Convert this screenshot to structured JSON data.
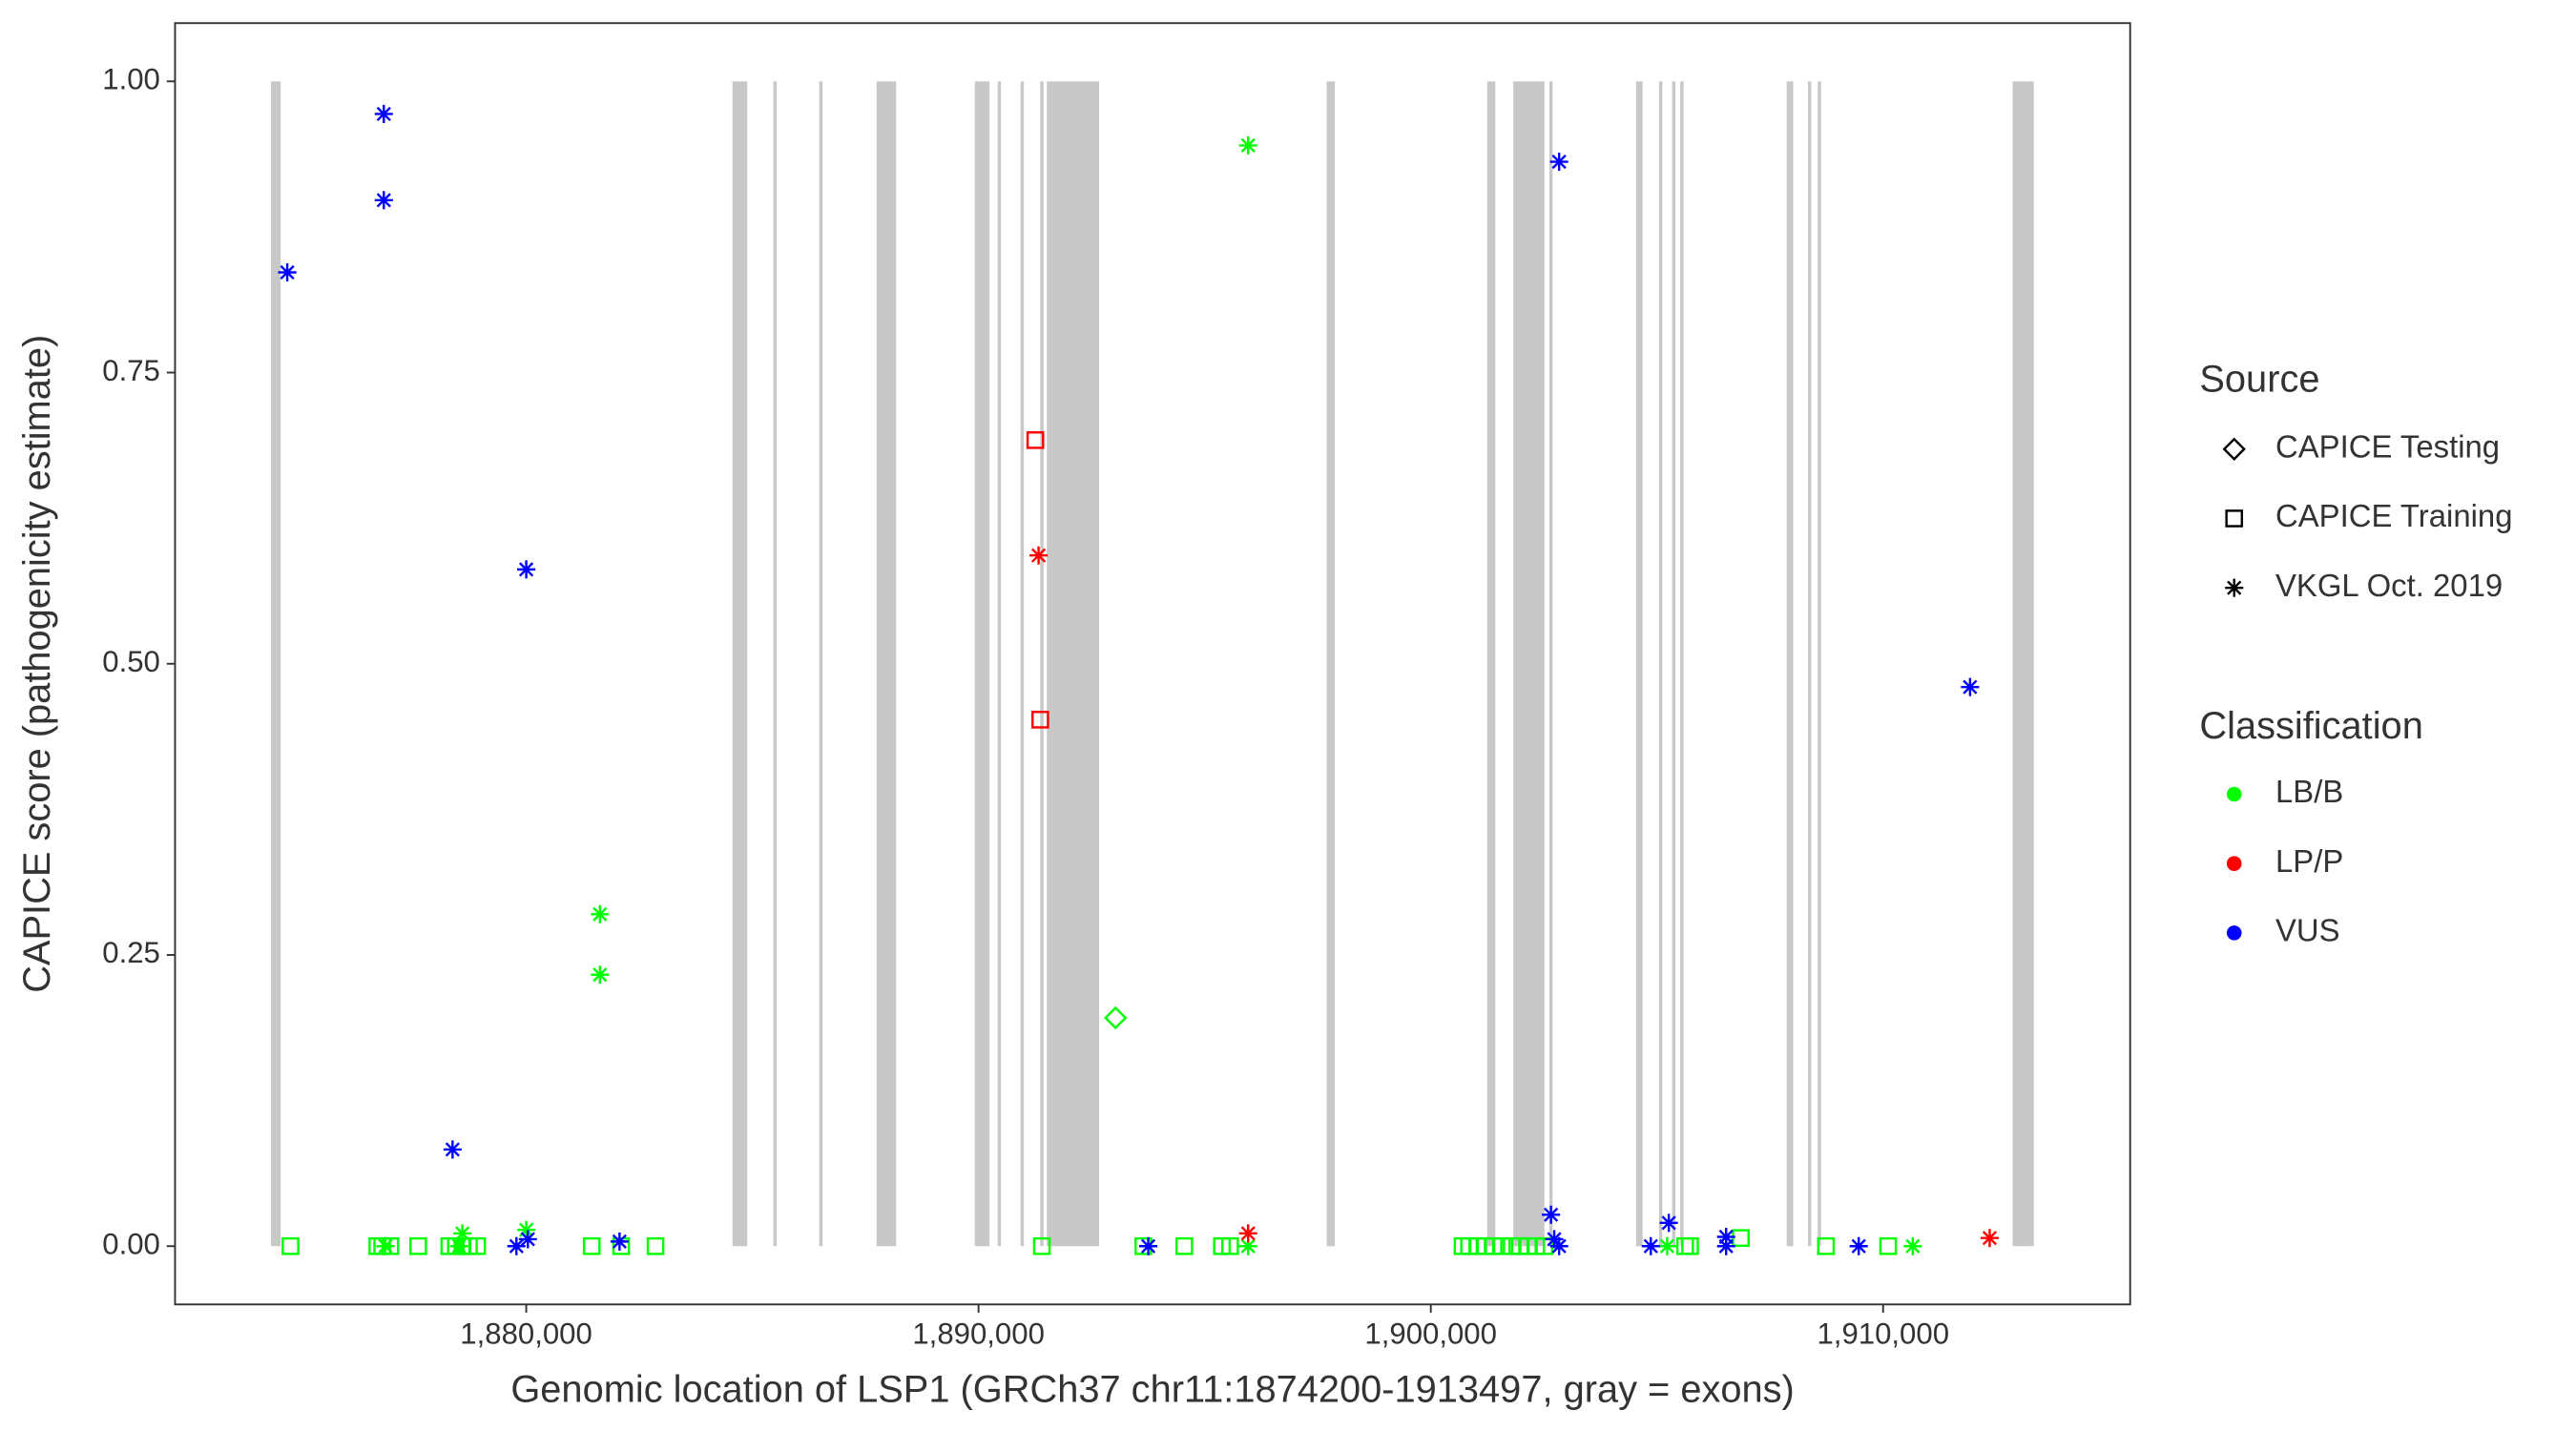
{
  "chart_data": {
    "type": "scatter",
    "x_label": "Genomic location of LSP1 (GRCh37 chr11:1874200-1913497, gray = exons)",
    "y_label": "CAPICE score (pathogenicity estimate)",
    "xlim": [
      1872235,
      1915462
    ],
    "ylim": [
      -0.05,
      1.05
    ],
    "xticks": [
      {
        "value": 1880000,
        "label": "1,880,000"
      },
      {
        "value": 1890000,
        "label": "1,890,000"
      },
      {
        "value": 1900000,
        "label": "1,900,000"
      },
      {
        "value": 1910000,
        "label": "1,910,000"
      }
    ],
    "yticks": [
      {
        "value": 0,
        "label": "0.00"
      },
      {
        "value": 0.25,
        "label": "0.25"
      },
      {
        "value": 0.5,
        "label": "0.50"
      },
      {
        "value": 0.75,
        "label": "0.75"
      },
      {
        "value": 1,
        "label": "1.00"
      }
    ],
    "grid": false,
    "exon_color": "#c8c8c8",
    "exons": [
      [
        1874354,
        1874571
      ],
      [
        1884560,
        1884886
      ],
      [
        1885465,
        1885537
      ],
      [
        1886478,
        1886550
      ],
      [
        1887745,
        1888179
      ],
      [
        1889917,
        1890242
      ],
      [
        1890423,
        1890496
      ],
      [
        1890930,
        1891002
      ],
      [
        1891365,
        1891437
      ],
      [
        1891509,
        1892667
      ],
      [
        1897698,
        1897879
      ],
      [
        1901245,
        1901426
      ],
      [
        1901824,
        1902512
      ],
      [
        1902621,
        1902693
      ],
      [
        1904539,
        1904683
      ],
      [
        1905045,
        1905118
      ],
      [
        1905335,
        1905407
      ],
      [
        1905516,
        1905588
      ],
      [
        1907868,
        1908013
      ],
      [
        1908339,
        1908411
      ],
      [
        1908556,
        1908628
      ],
      [
        1912863,
        1913333
      ]
    ],
    "source_title": "Source",
    "sources": [
      {
        "name": "CAPICE Testing",
        "shape": "diamond"
      },
      {
        "name": "CAPICE Training",
        "shape": "square"
      },
      {
        "name": "VKGL Oct. 2019",
        "shape": "asterisk"
      }
    ],
    "classification_title": "Classification",
    "classes": [
      {
        "name": "LB/B",
        "color": "#00ff00"
      },
      {
        "name": "LP/P",
        "color": "#ff0000"
      },
      {
        "name": "VUS",
        "color": "#0000ff"
      }
    ],
    "x": [
      1874788,
      1876707,
      1876815,
      1876996,
      1877611,
      1878299,
      1878444,
      1878589,
      1878733,
      1878914,
      1881448,
      1882099,
      1882859,
      1891400,
      1893644,
      1894549,
      1895381,
      1895562,
      1900701,
      1900846,
      1901027,
      1901208,
      1901389,
      1901570,
      1901787,
      1901968,
      1902149,
      1902330,
      1902511,
      1905623,
      1905732,
      1906854,
      1908736,
      1910111,
      1881629,
      1881629,
      1895961,
      1878588,
      1880000,
      1878516,
      1895961,
      1905226,
      1910655,
      1876887,
      1893029,
      1891256,
      1891365,
      1891328,
      1895961,
      1912356,
      1874716,
      1876851,
      1876851,
      1880000,
      1878371,
      1879783,
      1880036,
      1882063,
      1893753,
      1902837,
      1902657,
      1902729,
      1902837,
      1904864,
      1905262,
      1906529,
      1906529,
      1909461,
      1911922
    ],
    "y": [
      0,
      0,
      0,
      0,
      0,
      0,
      0,
      0,
      0,
      0,
      0,
      0,
      0,
      0,
      0,
      0,
      0,
      0,
      0,
      0,
      0,
      0,
      0,
      0,
      0,
      0,
      0,
      0,
      0,
      0,
      0,
      0.007,
      0,
      0,
      0.285,
      0.233,
      0.945,
      0.011,
      0.014,
      0,
      0,
      0,
      0,
      0,
      0.196,
      0.692,
      0.452,
      0.593,
      0.011,
      0.007,
      0.836,
      0.972,
      0.898,
      0.581,
      0.083,
      0,
      0.006,
      0.004,
      0,
      0.931,
      0.027,
      0.006,
      0,
      0,
      0.02,
      0.008,
      0,
      0,
      0.48
    ],
    "source": [
      1,
      1,
      1,
      1,
      1,
      1,
      1,
      1,
      1,
      1,
      1,
      1,
      1,
      1,
      1,
      1,
      1,
      1,
      1,
      1,
      1,
      1,
      1,
      1,
      1,
      1,
      1,
      1,
      1,
      1,
      1,
      1,
      1,
      1,
      2,
      2,
      2,
      2,
      2,
      2,
      2,
      2,
      2,
      2,
      0,
      1,
      1,
      2,
      2,
      2,
      2,
      2,
      2,
      2,
      2,
      2,
      2,
      2,
      2,
      2,
      2,
      2,
      2,
      2,
      2,
      2,
      2,
      2,
      2
    ],
    "classification": [
      0,
      0,
      0,
      0,
      0,
      0,
      0,
      0,
      0,
      0,
      0,
      0,
      0,
      0,
      0,
      0,
      0,
      0,
      0,
      0,
      0,
      0,
      0,
      0,
      0,
      0,
      0,
      0,
      0,
      0,
      0,
      0,
      0,
      0,
      0,
      0,
      0,
      0,
      0,
      0,
      0,
      0,
      0,
      0,
      0,
      1,
      1,
      1,
      1,
      1,
      2,
      2,
      2,
      2,
      2,
      2,
      2,
      2,
      2,
      2,
      2,
      2,
      2,
      2,
      2,
      2,
      2,
      2,
      2
    ]
  }
}
